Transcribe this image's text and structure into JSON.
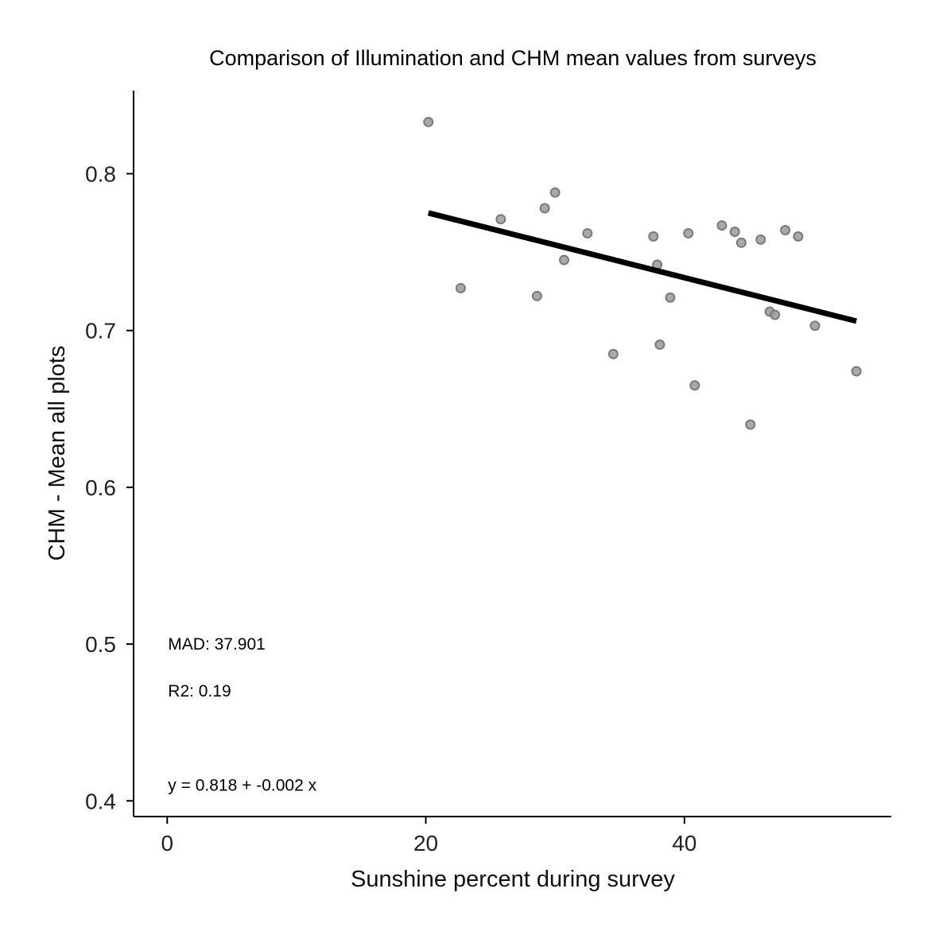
{
  "chart_data": {
    "type": "scatter",
    "title": "Comparison of Illumination and CHM mean values from surveys",
    "xlabel": "Sunshine percent during survey",
    "ylabel": "CHM - Mean all plots",
    "xlim": [
      -2.6,
      56.0
    ],
    "ylim": [
      0.39,
      0.853
    ],
    "x_ticks": [
      0,
      20,
      40
    ],
    "x_tick_labels": [
      "0",
      "20",
      "40"
    ],
    "y_ticks": [
      0.4,
      0.5,
      0.6,
      0.7,
      0.8
    ],
    "y_tick_labels": [
      "0.4",
      "0.5",
      "0.6",
      "0.7",
      "0.8"
    ],
    "grid": false,
    "legend": "none",
    "point_color": "#9a9a9a",
    "points": [
      {
        "x": 20.2,
        "y": 0.833
      },
      {
        "x": 22.7,
        "y": 0.727
      },
      {
        "x": 25.8,
        "y": 0.771
      },
      {
        "x": 28.6,
        "y": 0.722
      },
      {
        "x": 29.2,
        "y": 0.778
      },
      {
        "x": 30.0,
        "y": 0.788
      },
      {
        "x": 30.7,
        "y": 0.745
      },
      {
        "x": 32.5,
        "y": 0.762
      },
      {
        "x": 34.5,
        "y": 0.685
      },
      {
        "x": 37.6,
        "y": 0.76
      },
      {
        "x": 37.9,
        "y": 0.742
      },
      {
        "x": 38.1,
        "y": 0.691
      },
      {
        "x": 38.9,
        "y": 0.721
      },
      {
        "x": 40.3,
        "y": 0.762
      },
      {
        "x": 40.8,
        "y": 0.665
      },
      {
        "x": 42.9,
        "y": 0.767
      },
      {
        "x": 43.9,
        "y": 0.763
      },
      {
        "x": 44.4,
        "y": 0.756
      },
      {
        "x": 45.1,
        "y": 0.64
      },
      {
        "x": 45.9,
        "y": 0.758
      },
      {
        "x": 46.6,
        "y": 0.712
      },
      {
        "x": 47.0,
        "y": 0.71
      },
      {
        "x": 47.8,
        "y": 0.764
      },
      {
        "x": 48.8,
        "y": 0.76
      },
      {
        "x": 50.1,
        "y": 0.703
      },
      {
        "x": 53.3,
        "y": 0.674
      }
    ],
    "trend_line": {
      "x": [
        20.2,
        53.3
      ],
      "y": [
        0.775,
        0.706
      ]
    },
    "annotations": [
      {
        "id": "mad",
        "text": "MAD: 37.901",
        "x": 0,
        "y": 0.5
      },
      {
        "id": "r2",
        "text": "R2: 0.19",
        "x": 0,
        "y": 0.47
      },
      {
        "id": "equation",
        "text": "y =  0.818 + -0.002 x",
        "x": 0,
        "y": 0.41
      }
    ]
  }
}
